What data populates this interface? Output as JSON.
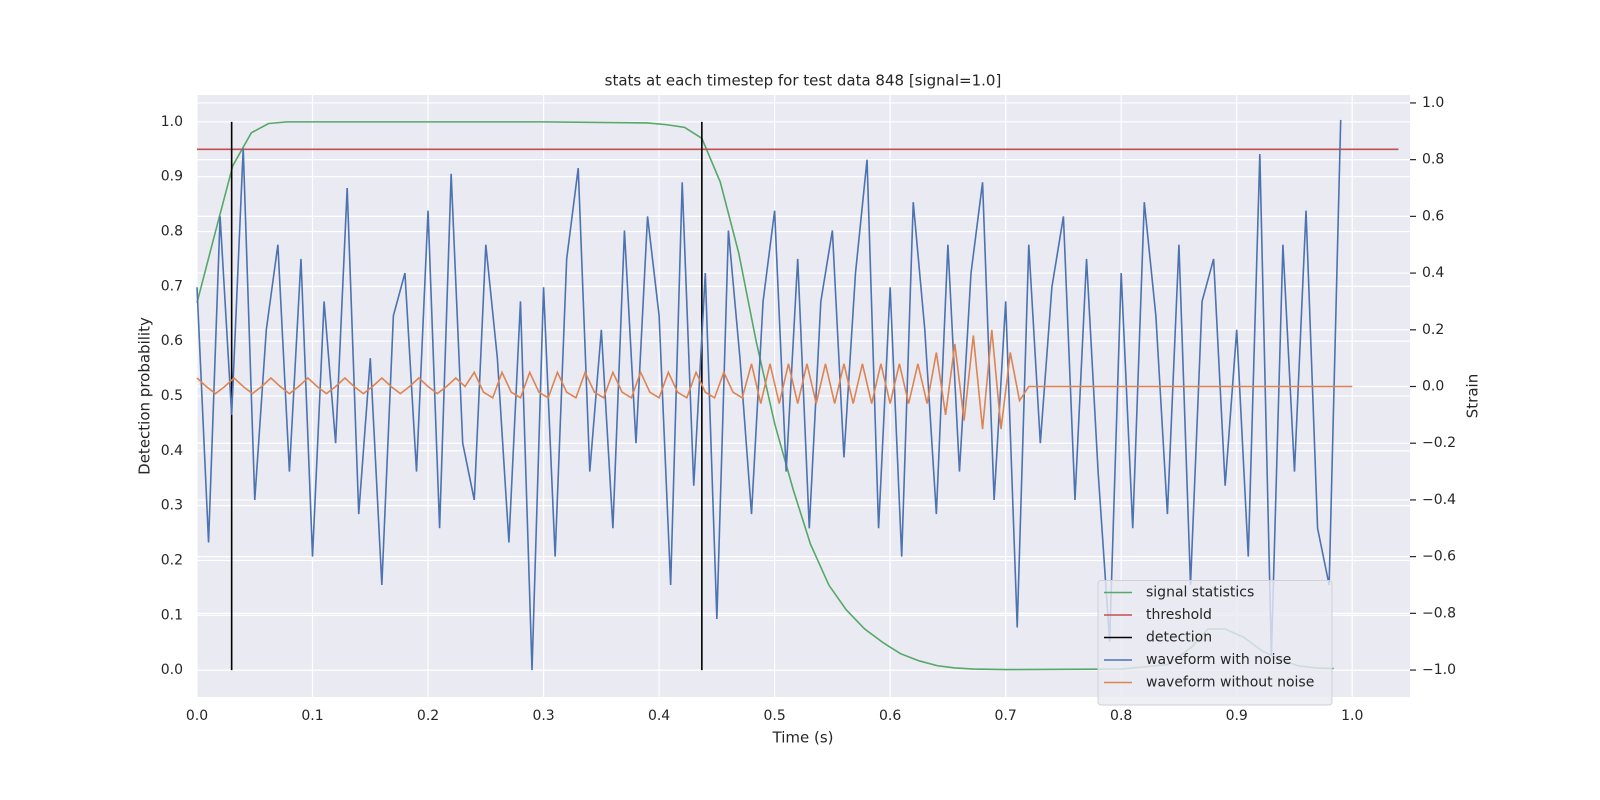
{
  "chart_data": {
    "type": "line",
    "title": "stats at each timestep for test data 848 [signal=1.0]",
    "xlabel": "Time (s)",
    "ylabel": "Detection probability",
    "y2label": "Strain",
    "xlim": [
      0,
      1.05
    ],
    "ylim": [
      -0.049,
      1.049
    ],
    "y2lim": [
      -1.095,
      1.028
    ],
    "xticks": [
      {
        "value": 0,
        "label": "0.0"
      },
      0.1,
      0.2,
      0.3,
      0.4,
      0.5,
      0.6,
      0.7,
      0.8,
      0.9,
      {
        "value": 1,
        "label": "1.0"
      }
    ],
    "yticks": [
      {
        "value": 0,
        "label": "0.0"
      },
      0.1,
      0.2,
      0.3,
      0.4,
      0.5,
      0.6,
      0.7,
      0.8,
      0.9,
      {
        "value": 1,
        "label": "1.0"
      }
    ],
    "y2ticks": [
      {
        "value": -1,
        "label": "−1.0"
      },
      {
        "value": -0.8,
        "label": "−0.8"
      },
      {
        "value": -0.6,
        "label": "−0.6"
      },
      {
        "value": -0.4,
        "label": "−0.4"
      },
      {
        "value": -0.2,
        "label": "−0.2"
      },
      {
        "value": 0,
        "label": "0.0"
      },
      0.2,
      0.4,
      0.6,
      0.8,
      {
        "value": 1,
        "label": "1.0"
      }
    ],
    "grid": true,
    "legend": "lower right",
    "series": [
      {
        "name": "signal statistics",
        "type": "line",
        "color": "#55a868",
        "x": [
          0,
          0.016,
          0.031,
          0.047,
          0.062,
          0.078,
          0.1,
          0.2,
          0.3,
          0.39,
          0.406,
          0.422,
          0.437,
          0.453,
          0.469,
          0.484,
          0.5,
          0.516,
          0.531,
          0.547,
          0.562,
          0.578,
          0.594,
          0.609,
          0.625,
          0.641,
          0.656,
          0.672,
          0.7,
          0.8,
          0.84,
          0.86,
          0.875,
          0.89,
          0.906,
          0.922,
          0.937,
          0.953,
          0.969,
          0.984
        ],
        "values": [
          0.67,
          0.8,
          0.92,
          0.98,
          0.997,
          1,
          1,
          1,
          1,
          0.998,
          0.995,
          0.99,
          0.97,
          0.89,
          0.76,
          0.6,
          0.45,
          0.33,
          0.23,
          0.155,
          0.11,
          0.075,
          0.05,
          0.03,
          0.017,
          0.008,
          0.004,
          0.002,
          0.001,
          0.002,
          0.01,
          0.04,
          0.075,
          0.075,
          0.06,
          0.035,
          0.02,
          0.008,
          0.004,
          0.003
        ]
      },
      {
        "name": "threshold",
        "type": "line",
        "color": "#c44e52",
        "x": [
          0,
          1.04
        ],
        "values": [
          0.95,
          0.95
        ]
      },
      {
        "name": "detection",
        "type": "vlines",
        "color": "#000000",
        "x": [
          0.03,
          0.437
        ],
        "values": [
          1,
          1
        ],
        "bottoms": [
          0,
          0
        ]
      },
      {
        "name": "waveform with noise",
        "type": "line",
        "color": "#4c72b0",
        "axis": "y2",
        "x": [
          0,
          0.01,
          0.02,
          0.03,
          0.04,
          0.05,
          0.06,
          0.07,
          0.08,
          0.09,
          0.1,
          0.11,
          0.12,
          0.13,
          0.14,
          0.15,
          0.16,
          0.17,
          0.18,
          0.19,
          0.2,
          0.21,
          0.22,
          0.23,
          0.24,
          0.25,
          0.26,
          0.27,
          0.28,
          0.29,
          0.3,
          0.31,
          0.32,
          0.33,
          0.34,
          0.35,
          0.36,
          0.37,
          0.38,
          0.39,
          0.4,
          0.41,
          0.42,
          0.43,
          0.44,
          0.45,
          0.46,
          0.47,
          0.48,
          0.49,
          0.5,
          0.51,
          0.52,
          0.53,
          0.54,
          0.55,
          0.56,
          0.57,
          0.58,
          0.59,
          0.6,
          0.61,
          0.62,
          0.63,
          0.64,
          0.65,
          0.66,
          0.67,
          0.68,
          0.69,
          0.7,
          0.71,
          0.72,
          0.73,
          0.74,
          0.75,
          0.76,
          0.77,
          0.78,
          0.79,
          0.8,
          0.81,
          0.82,
          0.83,
          0.84,
          0.85,
          0.86,
          0.87,
          0.88,
          0.89,
          0.9,
          0.91,
          0.92,
          0.93,
          0.94,
          0.95,
          0.96,
          0.97,
          0.98,
          0.99
        ],
        "values": [
          0.35,
          -0.55,
          0.6,
          -0.1,
          0.84,
          -0.4,
          0.2,
          0.5,
          -0.3,
          0.45,
          -0.6,
          0.3,
          -0.2,
          0.7,
          -0.45,
          0.1,
          -0.7,
          0.25,
          0.4,
          -0.3,
          0.62,
          -0.5,
          0.75,
          -0.2,
          -0.4,
          0.5,
          0.1,
          -0.55,
          0.3,
          -1.0,
          0.35,
          -0.6,
          0.45,
          0.77,
          -0.3,
          0.2,
          -0.5,
          0.55,
          -0.2,
          0.6,
          0.25,
          -0.7,
          0.72,
          -0.35,
          0.4,
          -0.82,
          0.55,
          0.1,
          -0.45,
          0.3,
          0.62,
          -0.3,
          0.45,
          -0.5,
          0.3,
          0.55,
          -0.25,
          0.4,
          0.8,
          -0.5,
          0.35,
          -0.6,
          0.65,
          0.2,
          -0.45,
          0.5,
          -0.3,
          0.4,
          0.72,
          -0.4,
          0.3,
          -0.85,
          0.5,
          -0.2,
          0.35,
          0.6,
          -0.4,
          0.45,
          -0.3,
          -0.9,
          0.4,
          -0.5,
          0.65,
          0.25,
          -0.45,
          0.5,
          -0.7,
          0.3,
          0.45,
          -0.35,
          0.2,
          -0.6,
          0.82,
          -0.95,
          0.5,
          -0.3,
          0.62,
          -0.5,
          -0.7,
          0.94
        ]
      },
      {
        "name": "waveform without noise",
        "type": "line",
        "color": "#dd8452",
        "axis": "y2",
        "x": [
          0,
          0.008,
          0.016,
          0.024,
          0.032,
          0.04,
          0.048,
          0.056,
          0.064,
          0.072,
          0.08,
          0.088,
          0.096,
          0.104,
          0.112,
          0.12,
          0.128,
          0.136,
          0.144,
          0.152,
          0.16,
          0.168,
          0.176,
          0.184,
          0.192,
          0.2,
          0.208,
          0.216,
          0.224,
          0.232,
          0.24,
          0.248,
          0.256,
          0.264,
          0.272,
          0.28,
          0.288,
          0.296,
          0.304,
          0.312,
          0.32,
          0.328,
          0.336,
          0.344,
          0.352,
          0.36,
          0.368,
          0.376,
          0.384,
          0.392,
          0.4,
          0.408,
          0.416,
          0.424,
          0.432,
          0.44,
          0.448,
          0.456,
          0.464,
          0.472,
          0.48,
          0.488,
          0.496,
          0.504,
          0.512,
          0.52,
          0.528,
          0.536,
          0.544,
          0.552,
          0.56,
          0.568,
          0.576,
          0.584,
          0.592,
          0.6,
          0.608,
          0.616,
          0.624,
          0.632,
          0.64,
          0.648,
          0.656,
          0.664,
          0.672,
          0.68,
          0.688,
          0.696,
          0.704,
          0.712,
          0.72,
          1.0
        ],
        "values": [
          0.03,
          0,
          -0.025,
          0,
          0.03,
          0,
          -0.025,
          0,
          0.03,
          0,
          -0.025,
          0,
          0.03,
          0,
          -0.025,
          0,
          0.03,
          0,
          -0.025,
          0,
          0.03,
          0,
          -0.025,
          0,
          0.03,
          0,
          -0.025,
          0,
          0.03,
          0,
          0.05,
          -0.02,
          -0.04,
          0.05,
          -0.02,
          -0.04,
          0.05,
          -0.02,
          -0.04,
          0.05,
          -0.02,
          -0.04,
          0.05,
          -0.02,
          -0.04,
          0.05,
          -0.02,
          -0.04,
          0.05,
          -0.02,
          -0.04,
          0.05,
          -0.02,
          -0.04,
          0.05,
          -0.02,
          -0.04,
          0.05,
          -0.02,
          -0.04,
          0.08,
          -0.06,
          0.08,
          -0.06,
          0.08,
          -0.06,
          0.08,
          -0.06,
          0.08,
          -0.06,
          0.08,
          -0.06,
          0.08,
          -0.06,
          0.08,
          -0.06,
          0.08,
          -0.06,
          0.08,
          -0.06,
          0.12,
          -0.1,
          0.15,
          -0.12,
          0.18,
          -0.15,
          0.2,
          -0.15,
          0.12,
          -0.05,
          0,
          0
        ]
      }
    ]
  }
}
